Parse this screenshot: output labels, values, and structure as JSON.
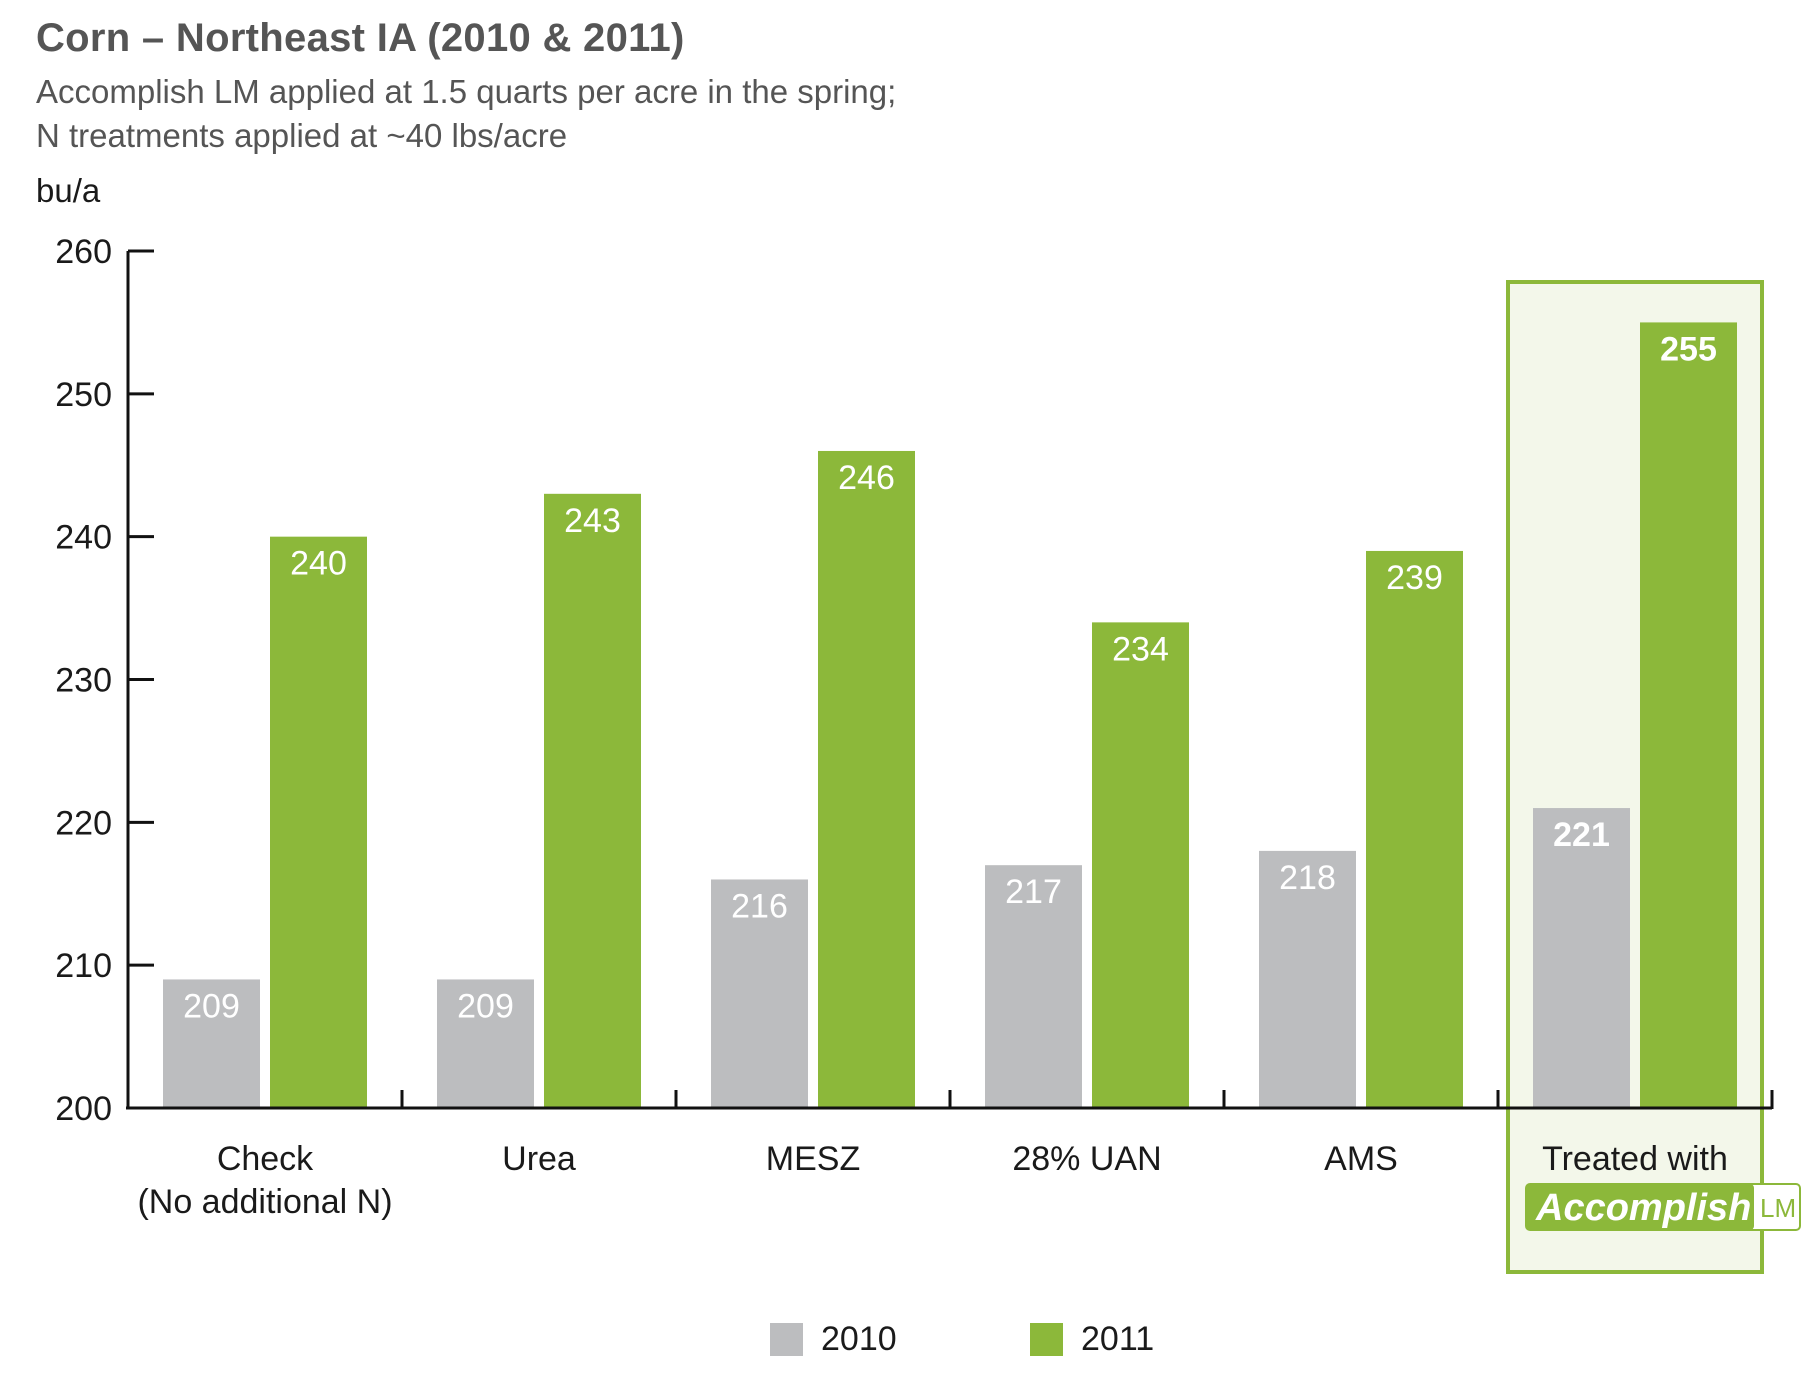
{
  "colors": {
    "series_2010": "#bcbdbf",
    "series_2011": "#8cb83a",
    "highlight_border": "#8cb83a",
    "highlight_fill": "#f3f7ea",
    "axis": "#111111",
    "title": "#555555"
  },
  "legend": {
    "item_2010": "2010",
    "item_2011": "2011"
  },
  "chart_data": {
    "type": "bar",
    "title": "Corn – Northeast IA (2010 & 2011)",
    "subtitle_line1": "Accomplish LM applied at 1.5 quarts per acre in the spring;",
    "subtitle_line2": "N treatments applied at ~40 lbs/acre",
    "ylabel": "bu/a",
    "xlabel": "",
    "ylim": [
      200,
      260
    ],
    "yticks": [
      200,
      210,
      220,
      230,
      240,
      250,
      260
    ],
    "grid": false,
    "legend_position": "bottom-center",
    "categories": [
      {
        "line1": "Check",
        "line2": "(No additional N)"
      },
      {
        "line1": "Urea",
        "line2": ""
      },
      {
        "line1": "MESZ",
        "line2": ""
      },
      {
        "line1": "28% UAN",
        "line2": ""
      },
      {
        "line1": "AMS",
        "line2": ""
      },
      {
        "line1": "Treated with",
        "line2": ""
      }
    ],
    "highlight_category_index": 5,
    "highlight_logo": {
      "script": "Accomplish",
      "suffix": "LM"
    },
    "series": [
      {
        "name": "2010",
        "values": [
          209,
          209,
          216,
          217,
          218,
          221
        ]
      },
      {
        "name": "2011",
        "values": [
          240,
          243,
          246,
          234,
          239,
          255
        ]
      }
    ]
  }
}
